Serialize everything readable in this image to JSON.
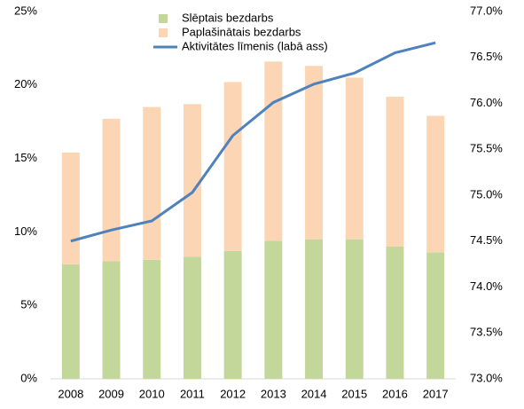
{
  "chart_data": {
    "type": "bar",
    "categories": [
      "2008",
      "2009",
      "2010",
      "2011",
      "2012",
      "2013",
      "2014",
      "2015",
      "2016",
      "2017"
    ],
    "stacked": true,
    "series": [
      {
        "name": "Slēptais bezdarbs",
        "type": "bar",
        "color": "#c4d79b",
        "values": [
          7.8,
          8.0,
          8.1,
          8.3,
          8.7,
          9.4,
          9.5,
          9.5,
          9.0,
          8.6
        ]
      },
      {
        "name": "Paplašinātais bezdarbs",
        "type": "bar",
        "color": "#fcd5b5",
        "values": [
          7.6,
          9.7,
          10.4,
          10.4,
          11.5,
          12.2,
          11.8,
          11.0,
          10.2,
          9.3
        ]
      },
      {
        "name": "Aktivitātes līmenis (labā ass)",
        "type": "line",
        "axis": "y2",
        "color": "#4f81bd",
        "values": [
          74.5,
          74.62,
          74.72,
          75.03,
          75.65,
          76.01,
          76.21,
          76.33,
          76.55,
          76.66
        ]
      }
    ],
    "ylim": [
      0,
      25
    ],
    "yticks": [
      {
        "value": 0,
        "label": "0%"
      },
      {
        "value": 5,
        "label": "5%"
      },
      {
        "value": 10,
        "label": "10%"
      },
      {
        "value": 15,
        "label": "15%"
      },
      {
        "value": 20,
        "label": "20%"
      },
      {
        "value": 25,
        "label": "25%"
      }
    ],
    "y2lim": [
      73,
      77
    ],
    "y2ticks": [
      {
        "value": 73,
        "label": "73.0%"
      },
      {
        "value": 73.5,
        "label": "73.5%"
      },
      {
        "value": 74,
        "label": "74.0%"
      },
      {
        "value": 74.5,
        "label": "74.5%"
      },
      {
        "value": 75,
        "label": "75.0%"
      },
      {
        "value": 75.5,
        "label": "75.5%"
      },
      {
        "value": 76,
        "label": "76.0%"
      },
      {
        "value": 76.5,
        "label": "76.5%"
      },
      {
        "value": 77,
        "label": "77.0%"
      }
    ],
    "legend": "top"
  }
}
